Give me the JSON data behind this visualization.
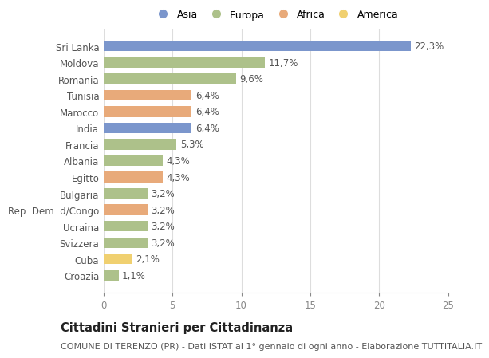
{
  "countries": [
    "Sri Lanka",
    "Moldova",
    "Romania",
    "Tunisia",
    "Marocco",
    "India",
    "Francia",
    "Albania",
    "Egitto",
    "Bulgaria",
    "Rep. Dem. d/Congo",
    "Ucraina",
    "Svizzera",
    "Cuba",
    "Croazia"
  ],
  "values": [
    22.3,
    11.7,
    9.6,
    6.4,
    6.4,
    6.4,
    5.3,
    4.3,
    4.3,
    3.2,
    3.2,
    3.2,
    3.2,
    2.1,
    1.1
  ],
  "labels": [
    "22,3%",
    "11,7%",
    "9,6%",
    "6,4%",
    "6,4%",
    "6,4%",
    "5,3%",
    "4,3%",
    "4,3%",
    "3,2%",
    "3,2%",
    "3,2%",
    "3,2%",
    "2,1%",
    "1,1%"
  ],
  "continents": [
    "Asia",
    "Europa",
    "Europa",
    "Africa",
    "Africa",
    "Asia",
    "Europa",
    "Europa",
    "Africa",
    "Europa",
    "Africa",
    "Europa",
    "Europa",
    "America",
    "Europa"
  ],
  "colors": {
    "Asia": "#7b96cc",
    "Europa": "#adc18a",
    "Africa": "#e8aa7a",
    "America": "#f0d070"
  },
  "legend_order": [
    "Asia",
    "Europa",
    "Africa",
    "America"
  ],
  "xlim": [
    0,
    25
  ],
  "xticks": [
    0,
    5,
    10,
    15,
    20,
    25
  ],
  "title": "Cittadini Stranieri per Cittadinanza",
  "subtitle": "COMUNE DI TERENZO (PR) - Dati ISTAT al 1° gennaio di ogni anno - Elaborazione TUTTITALIA.IT",
  "bg_color": "#ffffff",
  "grid_color": "#dddddd",
  "bar_height": 0.65,
  "label_fontsize": 8.5,
  "ytick_fontsize": 8.5,
  "xtick_fontsize": 8.5,
  "legend_fontsize": 9,
  "title_fontsize": 10.5,
  "subtitle_fontsize": 8
}
